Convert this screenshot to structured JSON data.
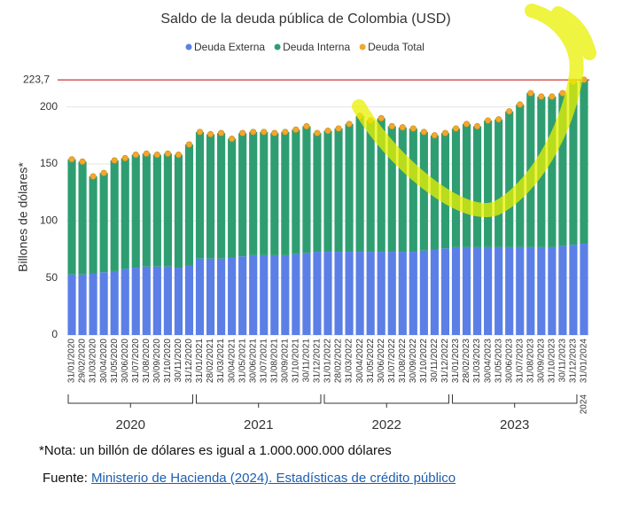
{
  "chart_data": {
    "type": "bar",
    "title": "Saldo de la deuda pública de Colombia (USD)",
    "y_label": "Billones de dólares*",
    "categories": [
      "31/01/2020",
      "29/02/2020",
      "31/03/2020",
      "30/04/2020",
      "31/05/2020",
      "30/06/2020",
      "31/07/2020",
      "31/08/2020",
      "30/09/2020",
      "31/10/2020",
      "30/11/2020",
      "31/12/2020",
      "31/01/2021",
      "28/02/2021",
      "31/03/2021",
      "30/04/2021",
      "31/05/2021",
      "30/06/2021",
      "31/07/2021",
      "31/08/2021",
      "30/09/2021",
      "31/10/2021",
      "30/11/2021",
      "31/12/2021",
      "31/01/2022",
      "28/02/2022",
      "31/03/2022",
      "30/04/2022",
      "31/05/2022",
      "30/06/2022",
      "31/07/2022",
      "31/08/2022",
      "30/09/2022",
      "31/10/2022",
      "30/11/2022",
      "31/12/2022",
      "31/01/2023",
      "28/02/2023",
      "31/03/2023",
      "30/04/2023",
      "31/05/2023",
      "30/06/2023",
      "31/07/2023",
      "31/08/2023",
      "30/09/2023",
      "31/10/2023",
      "30/11/2023",
      "31/12/2023",
      "31/01/2024"
    ],
    "year_labels": [
      "2020",
      "2021",
      "2022",
      "2023",
      "2024"
    ],
    "series": [
      {
        "name": "Deuda Externa",
        "color": "#5b7fe6",
        "style": "bar",
        "values": [
          53,
          53,
          54,
          55,
          56,
          58,
          59,
          60,
          60,
          60,
          59,
          61,
          67,
          67,
          67,
          68,
          69,
          70,
          70,
          70,
          70,
          71,
          72,
          73,
          73,
          73,
          73,
          73,
          73,
          73,
          73,
          73,
          73,
          74,
          75,
          76,
          77,
          77,
          77,
          77,
          77,
          77,
          77,
          77,
          77,
          77,
          78,
          79,
          80
        ]
      },
      {
        "name": "Deuda Interna",
        "color": "#2e9e72",
        "style": "bar",
        "values": [
          101,
          99,
          85,
          87,
          97,
          97,
          99,
          99,
          98,
          99,
          99,
          106,
          111,
          109,
          110,
          104,
          108,
          108,
          108,
          107,
          108,
          109,
          111,
          104,
          106,
          108,
          112,
          119,
          115,
          117,
          110,
          109,
          108,
          104,
          100,
          101,
          104,
          108,
          106,
          111,
          112,
          119,
          125,
          135,
          132,
          132,
          134,
          143,
          143.7
        ]
      },
      {
        "name": "Deuda Total",
        "color": "#f0a830",
        "style": "dot",
        "values": [
          154,
          152,
          139,
          142,
          153,
          155,
          158,
          159,
          158,
          159,
          158,
          167,
          178,
          176,
          177,
          172,
          177,
          178,
          178,
          177,
          178,
          180,
          183,
          177,
          179,
          181,
          185,
          192,
          188,
          190,
          183,
          182,
          181,
          178,
          175,
          177,
          181,
          185,
          183,
          188,
          189,
          196,
          202,
          212,
          209,
          209,
          212,
          222,
          223.7
        ]
      }
    ],
    "reference_line": {
      "value": 223.7,
      "label": "223,7",
      "color": "#c00000"
    },
    "ylim": [
      0,
      230
    ],
    "yticks": [
      0,
      50,
      100,
      150,
      200
    ],
    "grid": true
  },
  "note": "*Nota: un billón de dólares es igual a 1.000.000.000 dólares",
  "source": {
    "prefix": "Fuente:",
    "link": "Ministerio de Hacienda (2024). Estadísticas de crédito público"
  }
}
